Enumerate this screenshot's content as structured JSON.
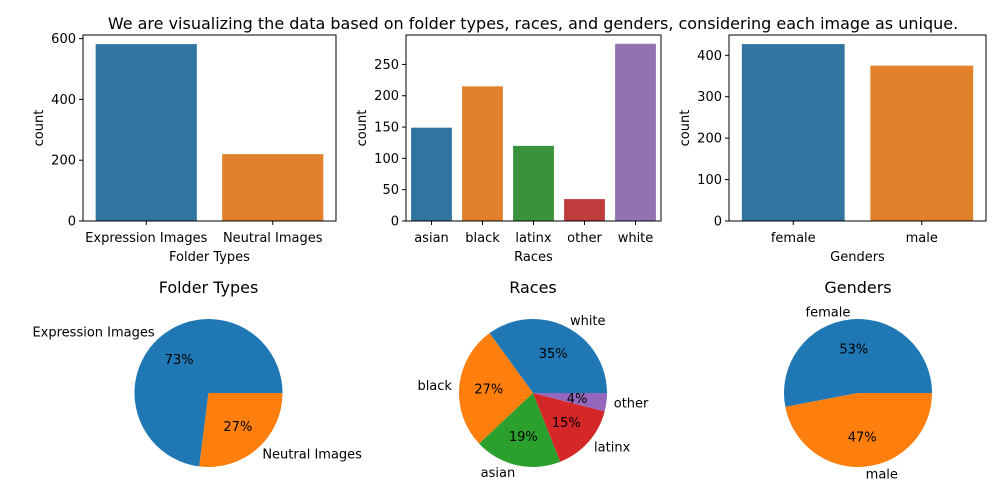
{
  "suptitle": "We are visualizing the data based on folder types, races, and genders, considering each image as unique.",
  "colors": {
    "blue": "#3274a1",
    "orange": "#e1812c",
    "green": "#3a923a",
    "red": "#c03d3e",
    "purple": "#9372b2",
    "pie_blue": "#1f77b4",
    "pie_orange": "#ff7f0e",
    "pie_green": "#2ca02c",
    "pie_red": "#d62728",
    "pie_purple": "#9467bd"
  },
  "chart_data": [
    {
      "type": "bar",
      "categories": [
        "Expression Images",
        "Neutral Images"
      ],
      "values": [
        582,
        220
      ],
      "xlabel": "Folder Types",
      "ylabel": "count",
      "ylim": [
        0,
        612
      ],
      "yticks": [
        0,
        200,
        400,
        600
      ],
      "colors": [
        "blue",
        "orange"
      ]
    },
    {
      "type": "bar",
      "categories": [
        "asian",
        "black",
        "latinx",
        "other",
        "white"
      ],
      "values": [
        149,
        215,
        120,
        35,
        283
      ],
      "xlabel": "Races",
      "ylabel": "count",
      "ylim": [
        0,
        297
      ],
      "yticks": [
        0,
        50,
        100,
        150,
        200,
        250
      ],
      "colors": [
        "blue",
        "orange",
        "green",
        "red",
        "purple"
      ]
    },
    {
      "type": "bar",
      "categories": [
        "female",
        "male"
      ],
      "values": [
        427,
        375
      ],
      "xlabel": "Genders",
      "ylabel": "count",
      "ylim": [
        0,
        449
      ],
      "yticks": [
        0,
        100,
        200,
        300,
        400
      ],
      "colors": [
        "blue",
        "orange"
      ]
    },
    {
      "type": "pie",
      "title": "Folder Types",
      "labels": [
        "Expression Images",
        "Neutral Images"
      ],
      "values": [
        73,
        27
      ],
      "pct_labels": [
        "73%",
        "27%"
      ],
      "colors": [
        "pie_blue",
        "pie_orange"
      ]
    },
    {
      "type": "pie",
      "title": "Races",
      "labels": [
        "white",
        "black",
        "asian",
        "latinx",
        "other"
      ],
      "values": [
        35,
        27,
        19,
        15,
        4
      ],
      "pct_labels": [
        "35%",
        "27%",
        "19%",
        "15%",
        "4%"
      ],
      "colors": [
        "pie_blue",
        "pie_orange",
        "pie_green",
        "pie_red",
        "pie_purple"
      ]
    },
    {
      "type": "pie",
      "title": "Genders",
      "labels": [
        "female",
        "male"
      ],
      "values": [
        53,
        47
      ],
      "pct_labels": [
        "53%",
        "47%"
      ],
      "colors": [
        "pie_blue",
        "pie_orange"
      ]
    }
  ]
}
